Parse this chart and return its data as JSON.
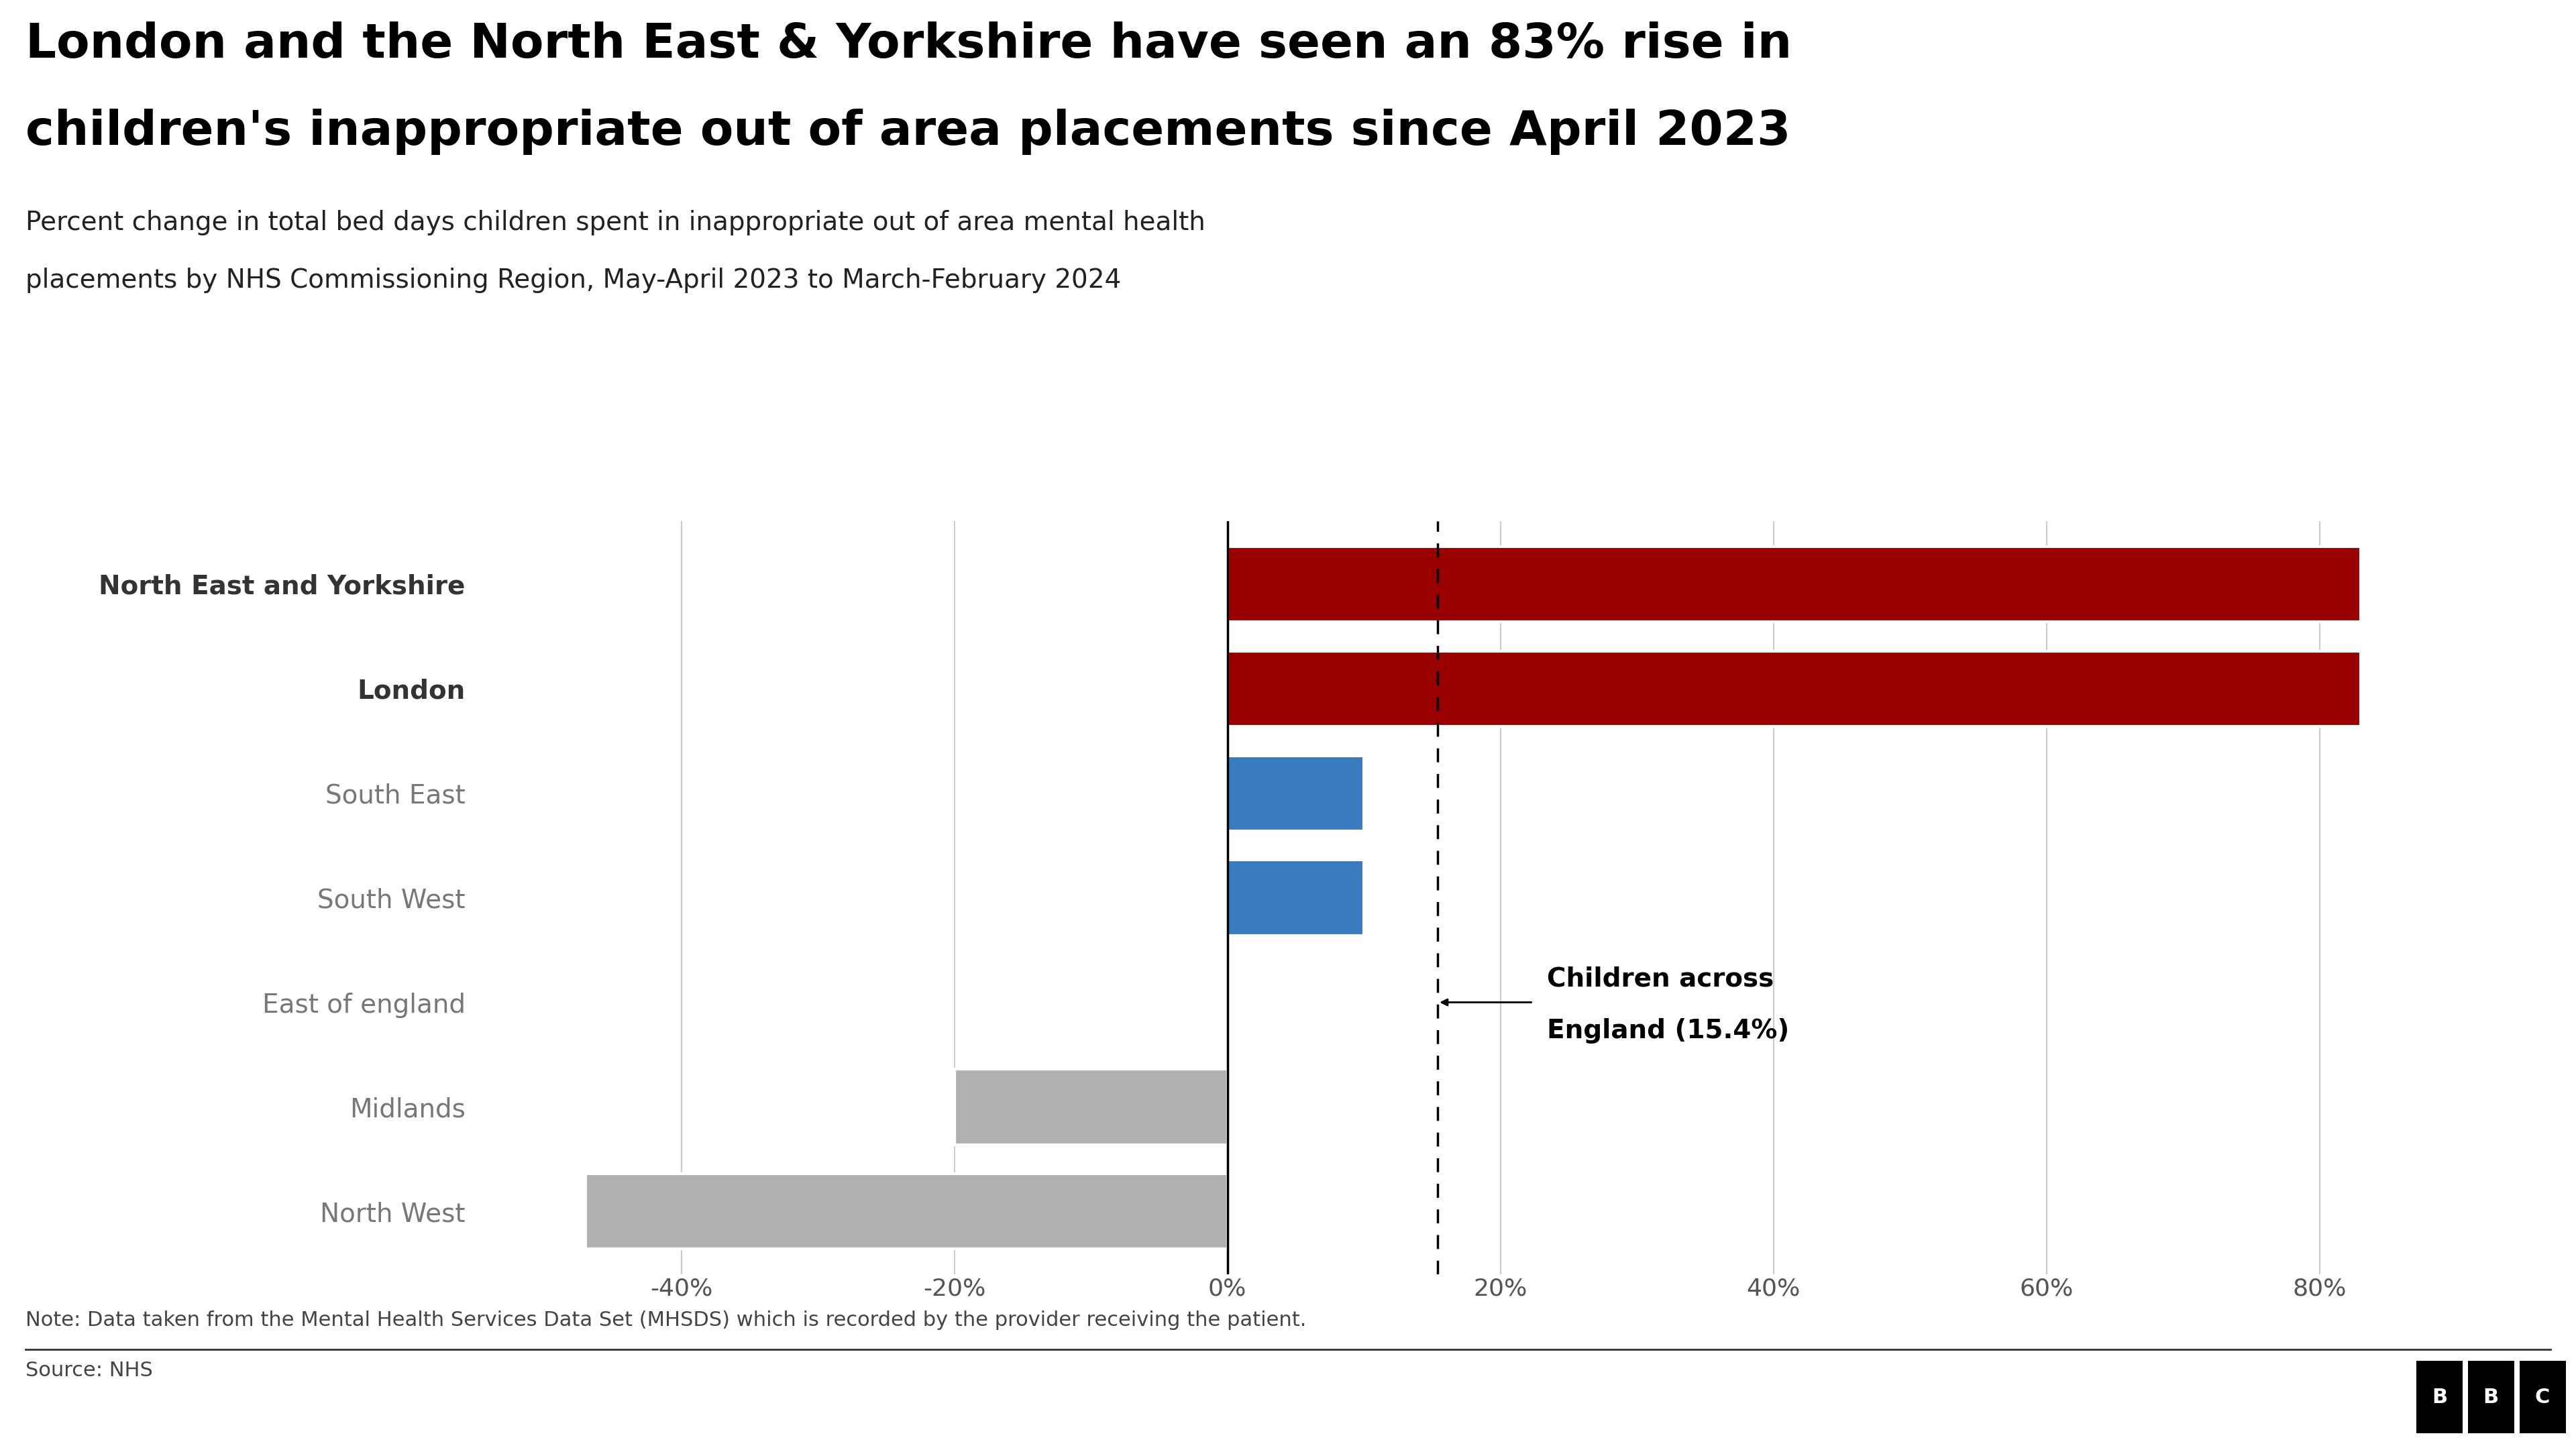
{
  "categories": [
    "North East and Yorkshire",
    "London",
    "South East",
    "South West",
    "East of england",
    "Midlands",
    "North West"
  ],
  "values": [
    83,
    83,
    10,
    10,
    0,
    -20,
    -47
  ],
  "bar_colors": [
    "#990000",
    "#990000",
    "#3a7abf",
    "#3a7abf",
    "#b0b0b0",
    "#b0b0b0",
    "#b0b0b0"
  ],
  "label_bold": [
    true,
    true,
    false,
    false,
    false,
    false,
    false
  ],
  "title_line1": "London and the North East & Yorkshire have seen an 83% rise in",
  "title_line2": "children's inappropriate out of area placements since April 2023",
  "subtitle_line1": "Percent change in total bed days children spent in inappropriate out of area mental health",
  "subtitle_line2": "placements by NHS Commissioning Region, May-April 2023 to March-February 2024",
  "note": "Note: Data taken from the Mental Health Services Data Set (MHSDS) which is recorded by the provider receiving the patient.",
  "source": "Source: NHS",
  "england_line": 15.4,
  "england_label_line1": "Children across",
  "england_label_line2": "England (15.4%)",
  "xlim": [
    -55,
    95
  ],
  "xticks": [
    -40,
    -20,
    0,
    20,
    40,
    60,
    80
  ],
  "background_color": "#ffffff",
  "title_color": "#000000",
  "subtitle_color": "#222222",
  "bar_height": 0.72,
  "title_fontsize": 52,
  "subtitle_fontsize": 28,
  "label_fontsize": 28,
  "tick_fontsize": 26,
  "note_fontsize": 22,
  "annotation_fontsize": 28,
  "grid_color": "#cccccc"
}
